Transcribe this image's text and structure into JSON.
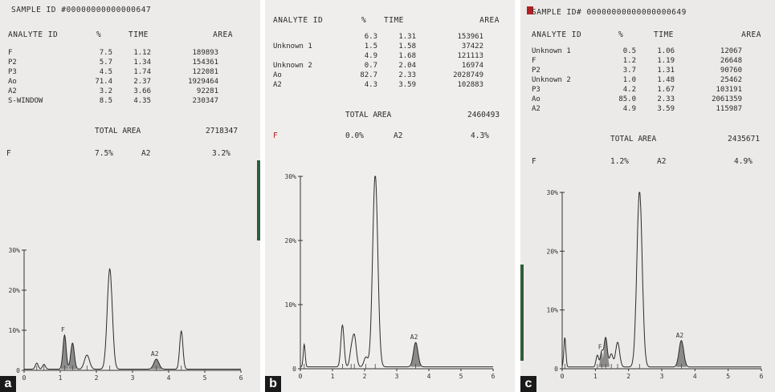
{
  "panels": [
    {
      "letter": "a",
      "header_left": "SAMPLE ID",
      "header_id": "#00000000000000647",
      "col_analyte": "ANALYTE ID",
      "col_pct": "%",
      "col_time": "TIME",
      "col_area": "AREA",
      "rows": [
        {
          "name": "F",
          "pct": "7.5",
          "time": "1.12",
          "area": "189893"
        },
        {
          "name": "P2",
          "pct": "5.7",
          "time": "1.34",
          "area": "154361"
        },
        {
          "name": "P3",
          "pct": "4.5",
          "time": "1.74",
          "area": "122081"
        },
        {
          "name": "Ao",
          "pct": "71.4",
          "time": "2.37",
          "area": "1929464"
        },
        {
          "name": "A2",
          "pct": "3.2",
          "time": "3.66",
          "area": "92281"
        },
        {
          "name": "S-WINDOW",
          "pct": "8.5",
          "time": "4.35",
          "area": "230347"
        }
      ],
      "total_label": "TOTAL AREA",
      "total_value": "2718347",
      "sum_f_label": "F",
      "sum_f_value": "7.5%",
      "sum_a2_label": "A2",
      "sum_a2_value": "3.2%",
      "y_ticks": [
        "30%",
        "20%",
        "10%",
        "0"
      ],
      "x_ticks": [
        "0",
        "1",
        "2",
        "3",
        "4",
        "5",
        "6"
      ],
      "peak_labels": [
        "F",
        "A2"
      ]
    },
    {
      "letter": "b",
      "header_left": "",
      "header_id": "",
      "col_analyte": "ANALYTE ID",
      "col_pct": "%",
      "col_time": "TIME",
      "col_area": "AREA",
      "rows": [
        {
          "name": "",
          "pct": "6.3",
          "time": "1.31",
          "area": "153961"
        },
        {
          "name": "Unknown 1",
          "pct": "1.5",
          "time": "1.58",
          "area": "37422"
        },
        {
          "name": "",
          "pct": "4.9",
          "time": "1.68",
          "area": "121113"
        },
        {
          "name": "Unknown 2",
          "pct": "0.7",
          "time": "2.04",
          "area": "16974"
        },
        {
          "name": "Ao",
          "pct": "82.7",
          "time": "2.33",
          "area": "2028749"
        },
        {
          "name": "A2",
          "pct": "4.3",
          "time": "3.59",
          "area": "102883"
        }
      ],
      "total_label": "TOTAL AREA",
      "total_value": "2460493",
      "sum_f_label": "F",
      "sum_f_value": "0.0%",
      "sum_a2_label": "A2",
      "sum_a2_value": "4.3%",
      "y_ticks": [
        "30%",
        "20%",
        "10%",
        "0"
      ],
      "x_ticks": [
        "0",
        "1",
        "2",
        "3",
        "4",
        "5",
        "6"
      ],
      "peak_labels": [
        "A2"
      ]
    },
    {
      "letter": "c",
      "header_left": "SAMPLE ID#",
      "header_id": "00000000000000000649",
      "col_analyte": "ANALYTE ID",
      "col_pct": "%",
      "col_time": "TIME",
      "col_area": "AREA",
      "rows": [
        {
          "name": "Unknown 1",
          "pct": "0.5",
          "time": "1.06",
          "area": "12067"
        },
        {
          "name": "F",
          "pct": "1.2",
          "time": "1.19",
          "area": "26648"
        },
        {
          "name": "P2",
          "pct": "3.7",
          "time": "1.31",
          "area": "90760"
        },
        {
          "name": "Unknown 2",
          "pct": "1.0",
          "time": "1.48",
          "area": "25462"
        },
        {
          "name": "P3",
          "pct": "4.2",
          "time": "1.67",
          "area": "103191"
        },
        {
          "name": "Ao",
          "pct": "85.0",
          "time": "2.33",
          "area": "2061359"
        },
        {
          "name": "A2",
          "pct": "4.9",
          "time": "3.59",
          "area": "115987"
        }
      ],
      "total_label": "TOTAL AREA",
      "total_value": "2435671",
      "sum_f_label": "F",
      "sum_f_value": "1.2%",
      "sum_a2_label": "A2",
      "sum_a2_value": "4.9%",
      "y_ticks": [
        "30%",
        "20%",
        "10%",
        "0"
      ],
      "x_ticks": [
        "0",
        "1",
        "2",
        "3",
        "4",
        "5",
        "6"
      ],
      "peak_labels": [
        "F",
        "A2"
      ]
    }
  ],
  "chart_data": [
    {
      "type": "line",
      "xlim": [
        0,
        6
      ],
      "ylim": [
        0,
        30
      ],
      "y_ticks": [
        0,
        10,
        20,
        30
      ],
      "x_ticks": [
        0,
        1,
        2,
        3,
        4,
        5,
        6
      ],
      "peaks": [
        {
          "x": 0.35,
          "h": 1.5,
          "w": 0.04
        },
        {
          "x": 0.55,
          "h": 1.2,
          "w": 0.04
        },
        {
          "x": 1.12,
          "h": 8.5,
          "w": 0.045,
          "label": "F",
          "shaded": true
        },
        {
          "x": 1.34,
          "h": 6.5,
          "w": 0.05,
          "shaded": true
        },
        {
          "x": 1.74,
          "h": 3.5,
          "w": 0.07
        },
        {
          "x": 2.37,
          "h": 25.0,
          "w": 0.07
        },
        {
          "x": 3.66,
          "h": 2.5,
          "w": 0.07,
          "label": "A2",
          "shaded": true
        },
        {
          "x": 4.35,
          "h": 9.5,
          "w": 0.045
        }
      ]
    },
    {
      "type": "line",
      "xlim": [
        0,
        6
      ],
      "ylim": [
        0,
        30
      ],
      "y_ticks": [
        0,
        10,
        20,
        30
      ],
      "x_ticks": [
        0,
        1,
        2,
        3,
        4,
        5,
        6
      ],
      "peaks": [
        {
          "x": 0.12,
          "h": 3.5,
          "w": 0.03
        },
        {
          "x": 1.31,
          "h": 6.5,
          "w": 0.05
        },
        {
          "x": 1.58,
          "h": 2.0,
          "w": 0.05
        },
        {
          "x": 1.68,
          "h": 4.8,
          "w": 0.06
        },
        {
          "x": 2.04,
          "h": 1.5,
          "w": 0.06
        },
        {
          "x": 2.33,
          "h": 30.0,
          "w": 0.08
        },
        {
          "x": 3.59,
          "h": 3.8,
          "w": 0.07,
          "label": "A2",
          "shaded": true
        }
      ]
    },
    {
      "type": "line",
      "xlim": [
        0,
        6
      ],
      "ylim": [
        0,
        30
      ],
      "y_ticks": [
        0,
        10,
        20,
        30
      ],
      "x_ticks": [
        0,
        1,
        2,
        3,
        4,
        5,
        6
      ],
      "peaks": [
        {
          "x": 0.08,
          "h": 5.0,
          "w": 0.03
        },
        {
          "x": 1.06,
          "h": 2.0,
          "w": 0.04
        },
        {
          "x": 1.19,
          "h": 2.5,
          "w": 0.04,
          "label": "F",
          "shaded": true
        },
        {
          "x": 1.31,
          "h": 5.0,
          "w": 0.05,
          "shaded": true
        },
        {
          "x": 1.48,
          "h": 2.2,
          "w": 0.05
        },
        {
          "x": 1.67,
          "h": 4.2,
          "w": 0.06
        },
        {
          "x": 2.33,
          "h": 30.0,
          "w": 0.08
        },
        {
          "x": 3.59,
          "h": 4.5,
          "w": 0.07,
          "label": "A2",
          "shaded": true
        }
      ]
    }
  ]
}
